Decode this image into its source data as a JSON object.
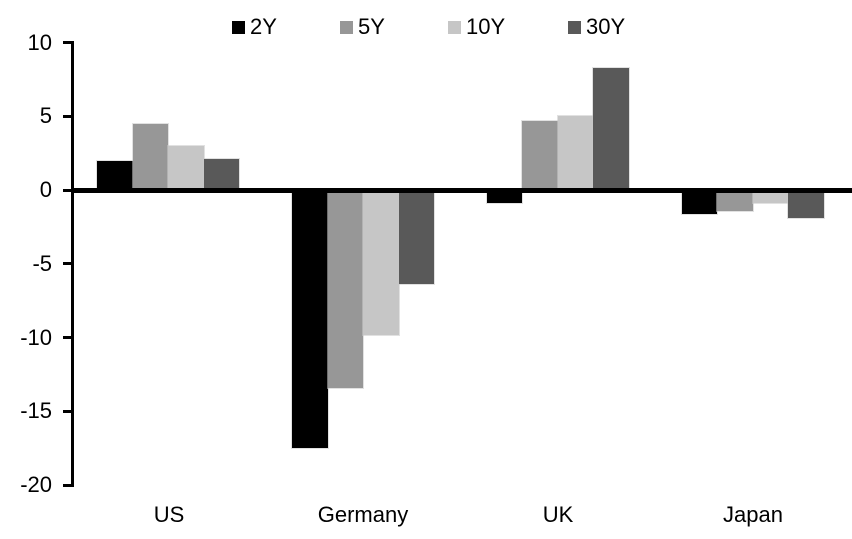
{
  "chart_data": {
    "type": "bar",
    "title": "",
    "xlabel": "",
    "ylabel": "",
    "categories": [
      "US",
      "Germany",
      "UK",
      "Japan"
    ],
    "series": [
      {
        "name": "2Y",
        "color": "#000000",
        "values": [
          2.0,
          -17.5,
          -0.9,
          -1.6
        ]
      },
      {
        "name": "5Y",
        "color": "#979797",
        "values": [
          4.5,
          -13.4,
          4.7,
          -1.4
        ]
      },
      {
        "name": "10Y",
        "color": "#c6c6c6",
        "values": [
          3.0,
          -9.8,
          5.0,
          -0.9
        ]
      },
      {
        "name": "30Y",
        "color": "#595959",
        "values": [
          2.1,
          -6.4,
          8.3,
          -1.9
        ]
      }
    ],
    "ylim": [
      -20,
      10
    ],
    "yticks": [
      10,
      5,
      0,
      -5,
      -10,
      -15,
      -20
    ],
    "ytick_labels": [
      "10",
      "5",
      "0",
      "-5",
      "-10",
      "-15",
      "-20"
    ],
    "legend_position": "top",
    "grid": "off",
    "axis_color": "#000000",
    "background_color": "#ffffff"
  }
}
